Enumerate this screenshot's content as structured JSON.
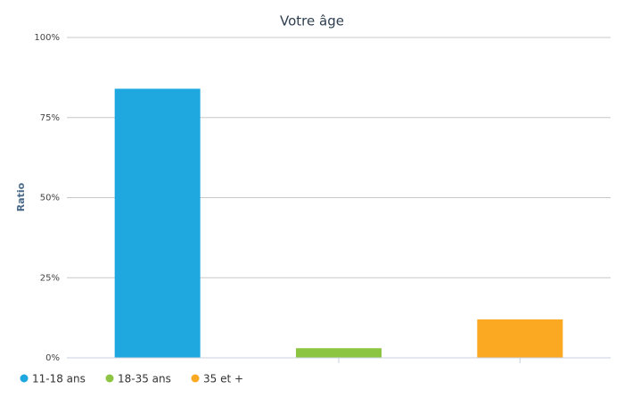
{
  "chart_data": {
    "type": "bar",
    "title": "Votre âge",
    "y_label": "Ratio",
    "categories": [
      null,
      null,
      null
    ],
    "series": [
      {
        "name": "11-18 ans",
        "color": "#1fa8e0",
        "values": [
          84,
          null,
          null
        ]
      },
      {
        "name": "18-35 ans",
        "color": "#8bc541",
        "values": [
          null,
          3,
          null
        ]
      },
      {
        "name": "35 et +",
        "color": "#fba822",
        "values": [
          null,
          null,
          12
        ]
      }
    ],
    "ylim": [
      0,
      100
    ],
    "yticks": [
      {
        "value": 0,
        "label": "0%"
      },
      {
        "value": 25,
        "label": "25%"
      },
      {
        "value": 50,
        "label": "50%"
      },
      {
        "value": 75,
        "label": "75%"
      },
      {
        "value": 100,
        "label": "100%"
      }
    ],
    "grid": true,
    "legend": "bottom-left"
  }
}
